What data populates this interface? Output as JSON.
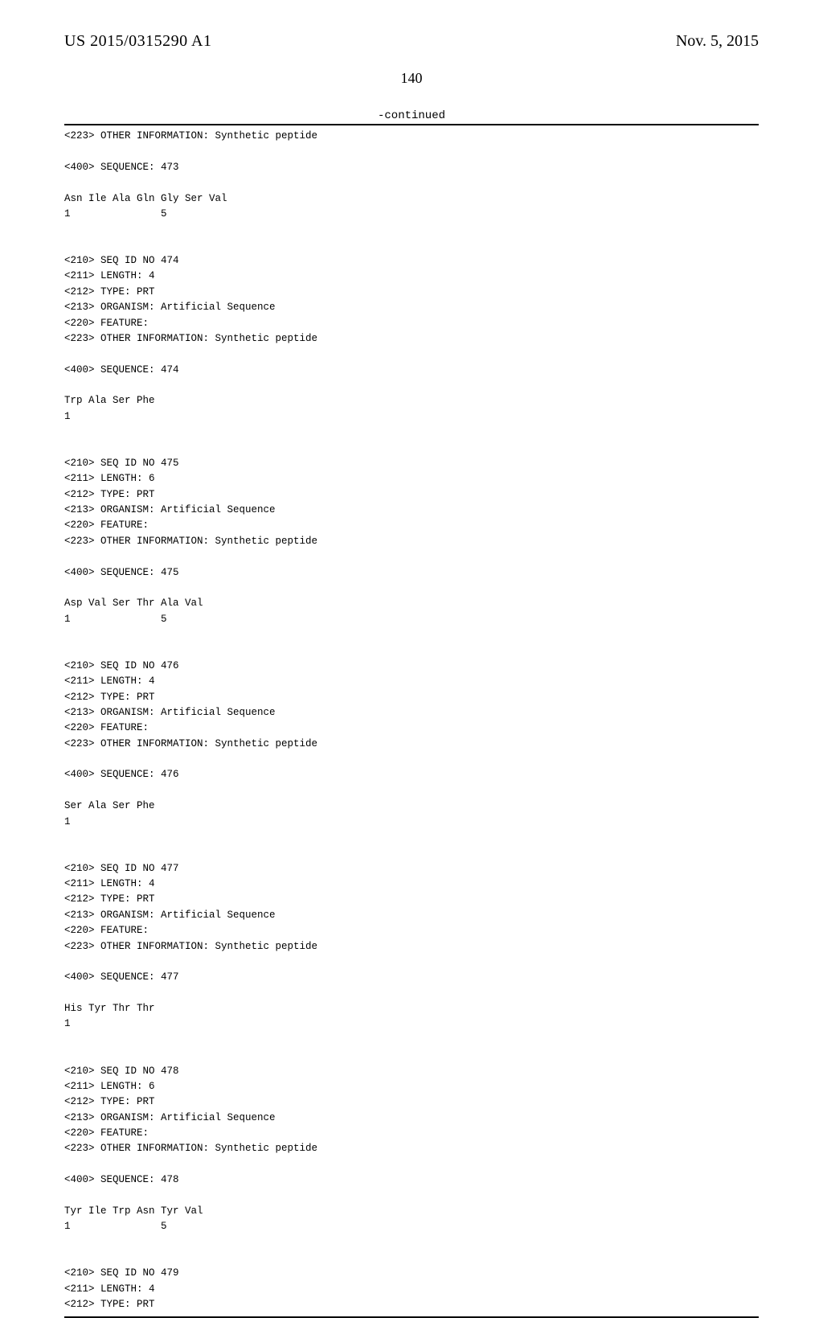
{
  "header": {
    "publication_number": "US 2015/0315290 A1",
    "publication_date": "Nov. 5, 2015"
  },
  "page_number": "140",
  "continued_label": "-continued",
  "sequence_listing": "<223> OTHER INFORMATION: Synthetic peptide\n\n<400> SEQUENCE: 473\n\nAsn Ile Ala Gln Gly Ser Val\n1               5\n\n\n<210> SEQ ID NO 474\n<211> LENGTH: 4\n<212> TYPE: PRT\n<213> ORGANISM: Artificial Sequence\n<220> FEATURE:\n<223> OTHER INFORMATION: Synthetic peptide\n\n<400> SEQUENCE: 474\n\nTrp Ala Ser Phe\n1\n\n\n<210> SEQ ID NO 475\n<211> LENGTH: 6\n<212> TYPE: PRT\n<213> ORGANISM: Artificial Sequence\n<220> FEATURE:\n<223> OTHER INFORMATION: Synthetic peptide\n\n<400> SEQUENCE: 475\n\nAsp Val Ser Thr Ala Val\n1               5\n\n\n<210> SEQ ID NO 476\n<211> LENGTH: 4\n<212> TYPE: PRT\n<213> ORGANISM: Artificial Sequence\n<220> FEATURE:\n<223> OTHER INFORMATION: Synthetic peptide\n\n<400> SEQUENCE: 476\n\nSer Ala Ser Phe\n1\n\n\n<210> SEQ ID NO 477\n<211> LENGTH: 4\n<212> TYPE: PRT\n<213> ORGANISM: Artificial Sequence\n<220> FEATURE:\n<223> OTHER INFORMATION: Synthetic peptide\n\n<400> SEQUENCE: 477\n\nHis Tyr Thr Thr\n1\n\n\n<210> SEQ ID NO 478\n<211> LENGTH: 6\n<212> TYPE: PRT\n<213> ORGANISM: Artificial Sequence\n<220> FEATURE:\n<223> OTHER INFORMATION: Synthetic peptide\n\n<400> SEQUENCE: 478\n\nTyr Ile Trp Asn Tyr Val\n1               5\n\n\n<210> SEQ ID NO 479\n<211> LENGTH: 4\n<212> TYPE: PRT"
}
